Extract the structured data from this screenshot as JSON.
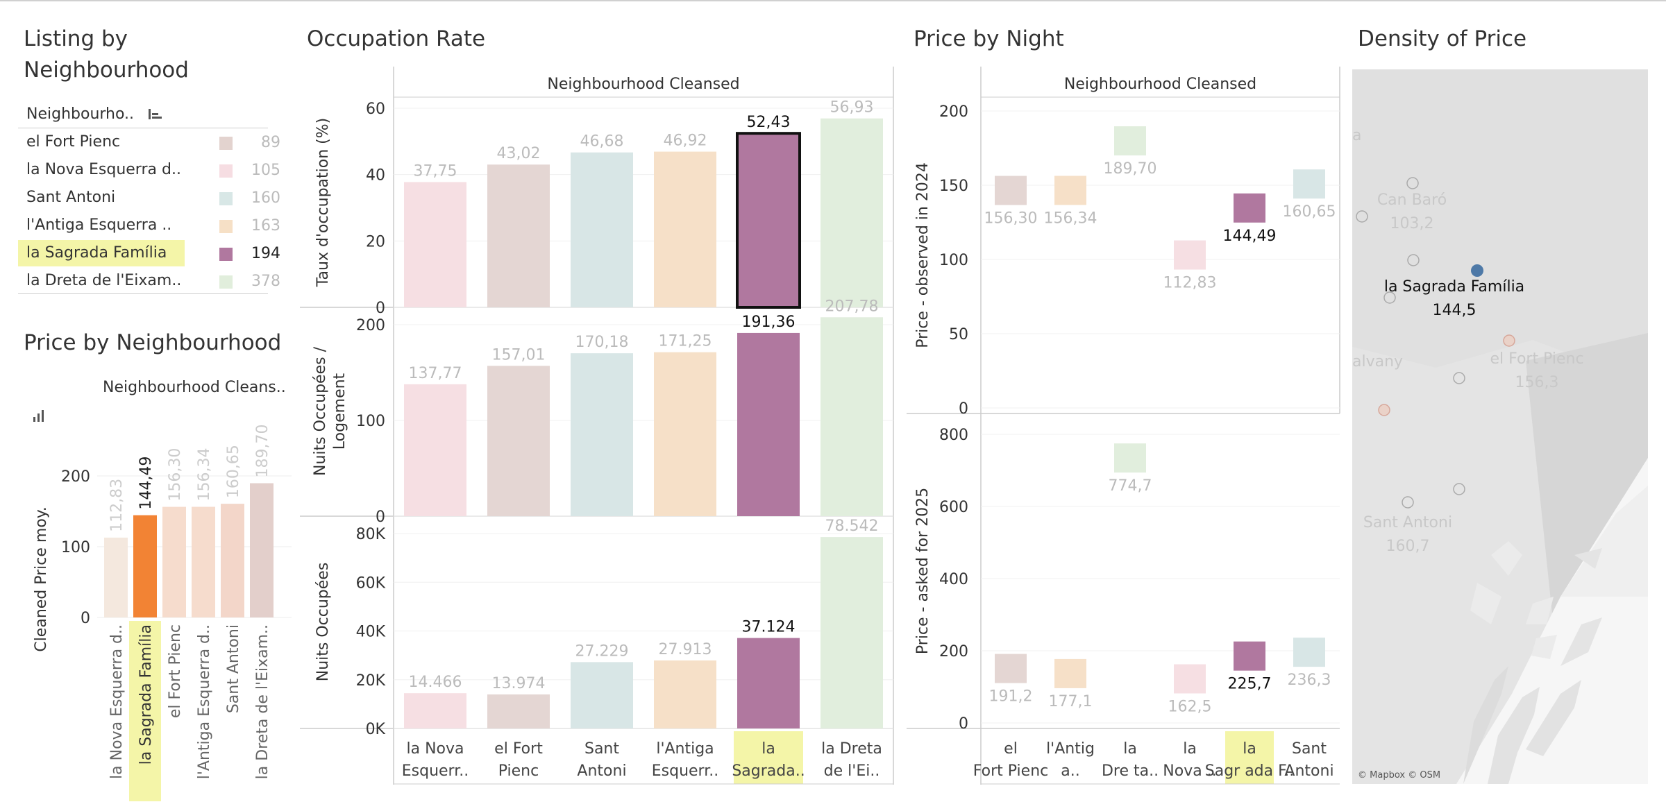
{
  "panels": {
    "listing_title_line1": "Listing by",
    "listing_title_line2": "Neighbourhood",
    "price_by_neighbourhood_title": "Price by Neighbourhood",
    "occupation_title": "Occupation Rate",
    "price_by_night_title": "Price by Night",
    "density_title": "Density of Price"
  },
  "listing": {
    "column_header": "Neighbourho..",
    "sort_icon": "sort-descending-icon",
    "rows": [
      {
        "label": "el Fort Pienc",
        "count": "89",
        "color": "#e3d3cf",
        "highlight": false
      },
      {
        "label": "la Nova Esquerra d..",
        "count": "105",
        "color": "#f6dde2",
        "highlight": false
      },
      {
        "label": "Sant Antoni",
        "count": "160",
        "color": "#d8e7e6",
        "highlight": false
      },
      {
        "label": "l'Antiga Esquerra ..",
        "count": "163",
        "color": "#f6e0c6",
        "highlight": false
      },
      {
        "label": "la Sagrada Família",
        "count": "194",
        "color": "#b0789f",
        "highlight": true
      },
      {
        "label": "la Dreta de l'Eixam..",
        "count": "378",
        "color": "#e1eedc",
        "highlight": false
      }
    ]
  },
  "price_by_neighbourhood": {
    "header": "Neighbourhood Cleans..",
    "chart_icon": "bar-chart-icon",
    "ylabel": "Cleaned Price moy.",
    "yticks": [
      "0",
      "100",
      "200"
    ],
    "categories": [
      "la Nova Esquerra d..",
      "la Sagrada Família",
      "el Fort Pienc",
      "l'Antiga Esquerra d..",
      "Sant Antoni",
      "la Dreta de l'Eixam.."
    ],
    "values": [
      112.83,
      144.49,
      156.3,
      156.34,
      160.65,
      189.7
    ],
    "labels": [
      "112,83",
      "144,49",
      "156,30",
      "156,34",
      "160,65",
      "189,70"
    ],
    "colors": [
      "#f4e8de",
      "#f28334",
      "#f6dccd",
      "#f6dccd",
      "#f3d6c9",
      "#e3cfcb"
    ],
    "highlight_index": 1
  },
  "occupation": {
    "header": "Neighbourhood Cleansed",
    "categories": [
      "la Nova Esquerr..",
      "el Fort Pienc",
      "Sant Antoni",
      "l'Antiga Esquerr..",
      "la Sagrada..",
      "la Dreta de l'Ei.."
    ],
    "highlight_index": 4,
    "colors": [
      "#f6dfe3",
      "#e4d6d3",
      "#d8e6e6",
      "#f6e0c8",
      "#b0789f",
      "#e1eedd"
    ],
    "rows": [
      {
        "ylabel": "Taux d'occupation (%)",
        "yticks": [
          "0",
          "20",
          "40",
          "60"
        ],
        "values": [
          37.75,
          43.02,
          46.68,
          46.92,
          52.43,
          56.93
        ],
        "labels": [
          "37,75",
          "43,02",
          "46,68",
          "46,92",
          "52,43",
          "56,93"
        ],
        "ymax": 60
      },
      {
        "ylabel_line1": "Nuits Occupées /",
        "ylabel_line2": "Logement",
        "yticks": [
          "0",
          "100",
          "200"
        ],
        "values": [
          137.77,
          157.01,
          170.18,
          171.25,
          191.36,
          207.78
        ],
        "labels": [
          "137,77",
          "157,01",
          "170,18",
          "171,25",
          "191,36",
          "207,78"
        ],
        "ymax": 200
      },
      {
        "ylabel": "Nuits Occupées",
        "yticks": [
          "0K",
          "20K",
          "40K",
          "60K",
          "80K"
        ],
        "values": [
          14466,
          13974,
          27229,
          27913,
          37124,
          78542
        ],
        "labels": [
          "14.466",
          "13.974",
          "27.229",
          "27.913",
          "37.124",
          "78.542"
        ],
        "ymax": 80000
      }
    ]
  },
  "price_by_night": {
    "header": "Neighbourhood Cleansed",
    "categories": [
      "el Fort Pienc",
      "l'Antig a..",
      "la Dre ta..",
      "la Nova ..",
      "la Sagr ada F..",
      "Sant Antoni"
    ],
    "highlight_index": 4,
    "colors": [
      "#e4d6d3",
      "#f6e0c8",
      "#e1eedd",
      "#f6dfe3",
      "#b0789f",
      "#d8e6e6"
    ],
    "rows": [
      {
        "ylabel": "Price - observed in 2024",
        "yticks": [
          "0",
          "50",
          "100",
          "150",
          "200"
        ],
        "values": [
          156.3,
          156.34,
          189.7,
          112.83,
          144.49,
          160.65
        ],
        "labels": [
          "156,30",
          "156,34",
          "189,70",
          "112,83",
          "144,49",
          "160,65"
        ],
        "ymax": 200
      },
      {
        "ylabel": "Price - asked for 2025",
        "yticks": [
          "0",
          "200",
          "400",
          "600",
          "800"
        ],
        "values": [
          191.2,
          177.1,
          774.7,
          162.5,
          225.7,
          236.3
        ],
        "labels": [
          "191,2",
          "177,1",
          "774,7",
          "162,5",
          "225,7",
          "236,3"
        ],
        "ymax": 800
      }
    ]
  },
  "map": {
    "attribution": "© Mapbox © OSM",
    "labels": [
      {
        "text": "Can Baró",
        "value": "103,2",
        "selected": false
      },
      {
        "text": "la Sagrada Família",
        "value": "144,5",
        "selected": true
      },
      {
        "text": "el Fort Pienc",
        "value": "156,3",
        "selected": false
      },
      {
        "text": "Sant Antoni",
        "value": "160,7",
        "selected": false
      },
      {
        "text": "alvany",
        "value": "",
        "selected": false
      },
      {
        "text": "a",
        "value": "",
        "selected": false
      }
    ],
    "selected_color": "#4e79a7"
  }
}
